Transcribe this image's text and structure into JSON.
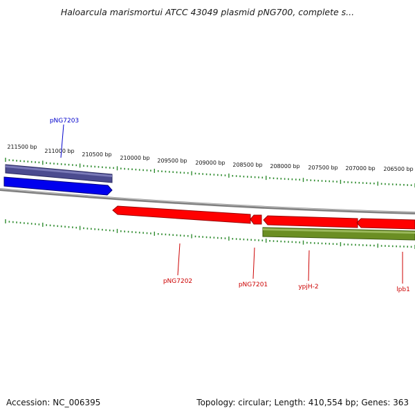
{
  "title": "Haloarcula marismortui ATCC 43049 plasmid pNG700, complete s...",
  "footer": {
    "accession": "Accession: NC_006395",
    "summary": "Topology: circular; Length: 410,554 bp; Genes: 363"
  },
  "colors": {
    "backbone": "#808080",
    "tick": "#2e8b2e",
    "forward_strand": "#0000ee",
    "reverse_strand": "#ff0000",
    "label_blue": "#0000cc",
    "label_red": "#cc0000",
    "slate_feature": "#4b4b8f",
    "olive_feature": "#6b8e23"
  },
  "axis": {
    "labels": [
      "211500 bp",
      "211000 bp",
      "210500 bp",
      "210000 bp",
      "209500 bp",
      "209000 bp",
      "208500 bp",
      "208000 bp",
      "207500 bp",
      "207000 bp",
      "206500 bp"
    ]
  },
  "genes": [
    {
      "label": "pNG7203",
      "color_key": "label_blue"
    },
    {
      "label": "pNG7202",
      "color_key": "label_red"
    },
    {
      "label": "pNG7201",
      "color_key": "label_red"
    },
    {
      "label": "ypjH-2",
      "color_key": "label_red"
    },
    {
      "label": "lpb1",
      "color_key": "label_red"
    }
  ]
}
